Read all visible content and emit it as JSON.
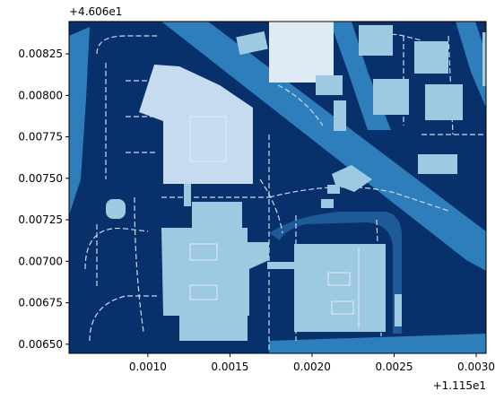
{
  "chart_data": {
    "type": "heatmap",
    "title": "",
    "xlabel": "",
    "ylabel": "",
    "x_offset_text": "+1.115e1",
    "y_offset_text": "+4.606e1",
    "xlim": [
      0.00052,
      0.00306
    ],
    "ylim": [
      0.006445,
      0.008445
    ],
    "x_ticks": [
      {
        "value": 0.001,
        "label": "0.0010"
      },
      {
        "value": 0.0015,
        "label": "0.0015"
      },
      {
        "value": 0.002,
        "label": "0.0020"
      },
      {
        "value": 0.0025,
        "label": "0.0025"
      },
      {
        "value": 0.003,
        "label": "0.0030"
      }
    ],
    "y_ticks": [
      {
        "value": 0.0065,
        "label": "0.00650"
      },
      {
        "value": 0.00675,
        "label": "0.00675"
      },
      {
        "value": 0.007,
        "label": "0.00700"
      },
      {
        "value": 0.00725,
        "label": "0.00725"
      },
      {
        "value": 0.0075,
        "label": "0.00750"
      },
      {
        "value": 0.00775,
        "label": "0.00775"
      },
      {
        "value": 0.008,
        "label": "0.00800"
      },
      {
        "value": 0.00825,
        "label": "0.00825"
      }
    ],
    "grid": false,
    "colormap": "Blues",
    "colors": {
      "background": "#08306b",
      "road": "#2f7ebc",
      "building_light": "#c6dbef",
      "building_lighter": "#deebf7",
      "building_mid": "#9ecae1",
      "markings": "#c6dbef"
    }
  }
}
